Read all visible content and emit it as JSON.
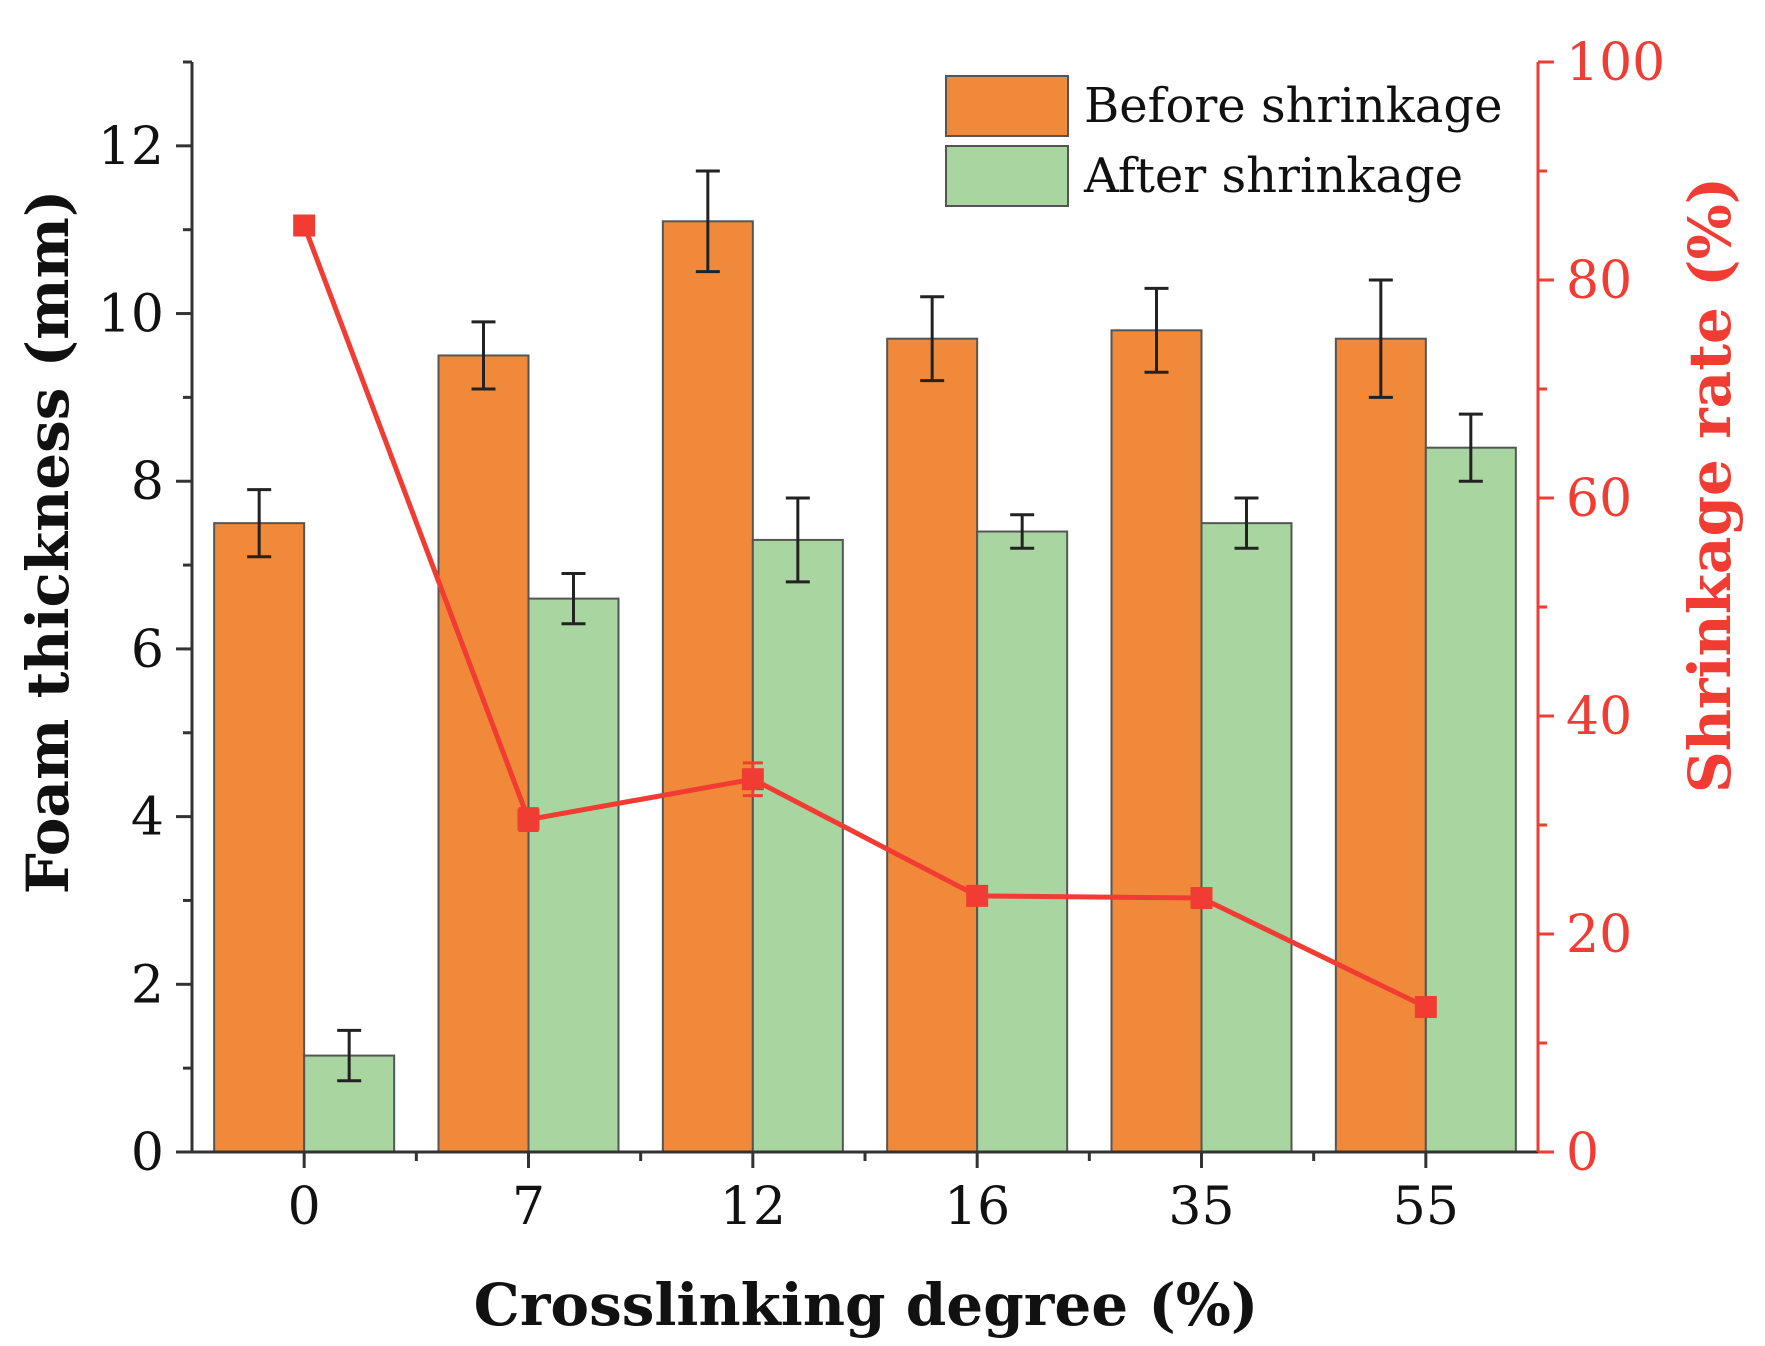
{
  "chart_data": {
    "type": "bar",
    "categories": [
      "0",
      "7",
      "12",
      "16",
      "35",
      "55"
    ],
    "xlabel": "Crosslinking degree (%)",
    "ylabel": "Foam thickness (mm)",
    "y2label": "Shrinkage rate (%)",
    "ylim": [
      0,
      13
    ],
    "y2lim": [
      0,
      100
    ],
    "yticks": [
      "0",
      "2",
      "4",
      "6",
      "8",
      "10",
      "12"
    ],
    "y2ticks": [
      "0",
      "20",
      "40",
      "60",
      "80",
      "100"
    ],
    "legend_position": "top-right",
    "series": [
      {
        "name": "Before shrinkage",
        "kind": "bar",
        "color": "#f08a3a",
        "values": [
          7.5,
          9.5,
          11.1,
          9.7,
          9.8,
          9.7
        ],
        "errors": [
          0.4,
          0.4,
          0.6,
          0.5,
          0.5,
          0.7
        ]
      },
      {
        "name": "After shrinkage",
        "kind": "bar",
        "color": "#a9d5a0",
        "values": [
          1.15,
          6.6,
          7.3,
          7.4,
          7.5,
          8.4
        ],
        "errors": [
          0.3,
          0.3,
          0.5,
          0.2,
          0.3,
          0.4
        ]
      },
      {
        "name": "Shrinkage rate",
        "kind": "line",
        "axis": "right",
        "color": "#f03c32",
        "values": [
          85,
          30.5,
          34.2,
          23.5,
          23.3,
          13.3
        ],
        "errors": [
          0,
          1.0,
          1.5,
          0.5,
          0.5,
          0.8
        ]
      }
    ]
  }
}
